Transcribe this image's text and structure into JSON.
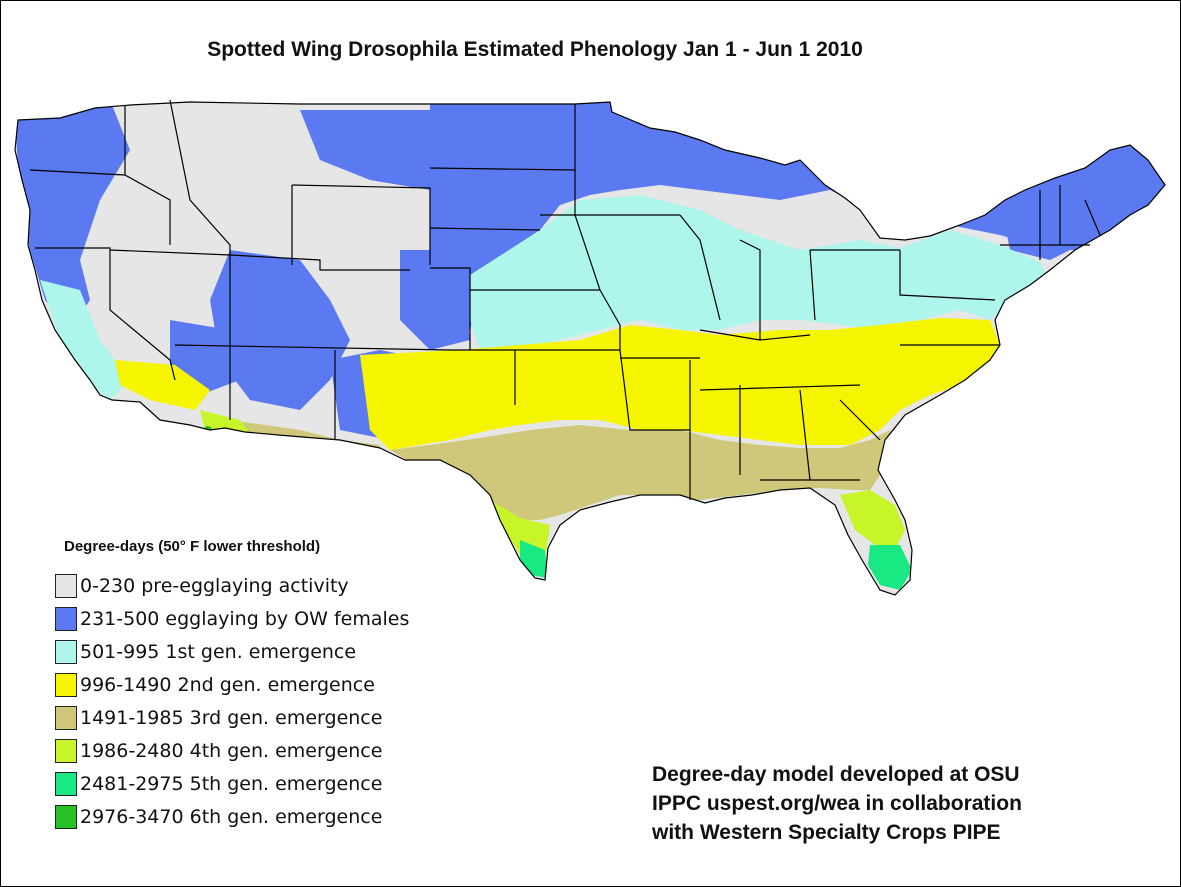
{
  "title": "Spotted Wing Drosophila Estimated Phenology Jan 1 - Jun 1 2010",
  "legend": {
    "title": "Degree-days (50° F lower threshold)",
    "items": [
      {
        "label": "0-230  pre-egglaying activity",
        "color": "#e6e6e6"
      },
      {
        "label": "231-500 egglaying by OW females",
        "color": "#5b79f0"
      },
      {
        "label": "501-995  1st gen. emergence",
        "color": "#aef5ec"
      },
      {
        "label": "996-1490  2nd gen. emergence",
        "color": "#f6f500"
      },
      {
        "label": "1491-1985  3rd gen. emergence",
        "color": "#cfc779"
      },
      {
        "label": "1986-2480  4th gen. emergence",
        "color": "#c7f52a"
      },
      {
        "label": "2481-2975  5th gen. emergence",
        "color": "#19e983"
      },
      {
        "label": "2976-3470  6th gen. emergence",
        "color": "#27c225"
      }
    ]
  },
  "credits": [
    "Degree-day model developed at OSU",
    "IPPC uspest.org/wea in collaboration",
    "with Western Specialty Crops PIPE"
  ]
}
